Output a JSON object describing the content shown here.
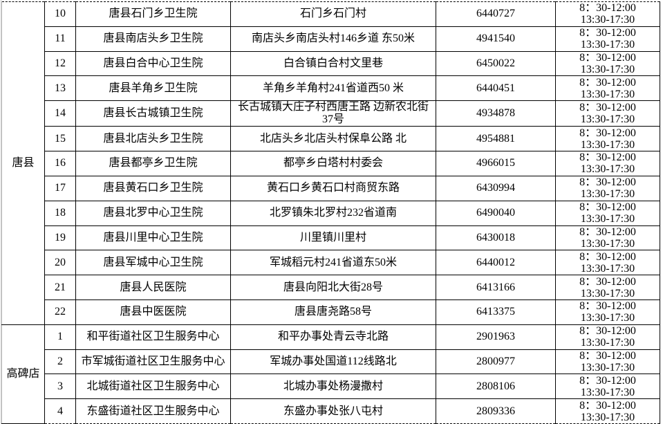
{
  "colors": {
    "background": "#ffffff",
    "border": "#000000",
    "text": "#000000",
    "outer_gridline": "#c9c9c9"
  },
  "table": {
    "columns": [
      "region",
      "row-number",
      "institution-name",
      "address",
      "phone",
      "service-hours"
    ],
    "sections": [
      {
        "region": "唐县",
        "rows": [
          {
            "no": "10",
            "name": "唐县石门乡卫生院",
            "address": "石门乡石门村",
            "phone": "6440727",
            "hours": [
              "8：30-12:00",
              "13:30-17:30"
            ]
          },
          {
            "no": "11",
            "name": "唐县南店头乡卫生院",
            "address": "南店头乡南店头村146乡道 东50米",
            "phone": "4941540",
            "hours": [
              "8：30-12:00",
              "13:30-17:30"
            ]
          },
          {
            "no": "12",
            "name": "唐县白合中心卫生院",
            "address": "白合镇白合村文里巷",
            "phone": "6450022",
            "hours": [
              "8：30-12:00",
              "13:30-17:30"
            ]
          },
          {
            "no": "13",
            "name": "唐县羊角乡卫生院",
            "address": "羊角乡羊角村241省道西50 米",
            "phone": "6440451",
            "hours": [
              "8：30-12:00",
              "13:30-17:30"
            ]
          },
          {
            "no": "14",
            "name": "唐县长古城镇卫生院",
            "address": "长古城镇大庄子村西唐王路 边新农北街37号",
            "phone": "4934878",
            "hours": [
              "8：30-12:00",
              "13:30-17:30"
            ]
          },
          {
            "no": "15",
            "name": "唐县北店头乡卫生院",
            "address": "北店头乡北店头村保阜公路 北",
            "phone": "4954881",
            "hours": [
              "8：30-12:00",
              "13:30-17:30"
            ]
          },
          {
            "no": "16",
            "name": "唐县都亭乡卫生院",
            "address": "都亭乡白塔村村委会",
            "phone": "4966015",
            "hours": [
              "8：30-12:00",
              "13:30-17:30"
            ]
          },
          {
            "no": "17",
            "name": "唐县黄石口乡卫生院",
            "address": "黄石口乡黄石口村商贸东路",
            "phone": "6430994",
            "hours": [
              "8：30-12:00",
              "13:30-17:30"
            ]
          },
          {
            "no": "18",
            "name": "唐县北罗中心卫生院",
            "address": "北罗镇朱北罗村232省道南",
            "phone": "6490040",
            "hours": [
              "8：30-12:00",
              "13:30-17:30"
            ]
          },
          {
            "no": "19",
            "name": "唐县川里中心卫生院",
            "address": "川里镇川里村",
            "phone": "6430018",
            "hours": [
              "8：30-12:00",
              "13:30-17:30"
            ]
          },
          {
            "no": "20",
            "name": "唐县军城中心卫生院",
            "address": "军城稻元村241省道东50米",
            "phone": "6440012",
            "hours": [
              "8：30-12:00",
              "13:30-17:30"
            ]
          },
          {
            "no": "21",
            "name": "唐县人民医院",
            "address": "唐县向阳北大街28号",
            "phone": "6413166",
            "hours": [
              "8：30-12:00",
              "13:30-17:30"
            ]
          },
          {
            "no": "22",
            "name": "唐县中医医院",
            "address": "唐县唐尧路58号",
            "phone": "6413375",
            "hours": [
              "8：30-12:00",
              "13:30-17:30"
            ]
          }
        ]
      },
      {
        "region": "高碑店",
        "rows": [
          {
            "no": "1",
            "name": "和平街道社区卫生服务中心",
            "address": "和平办事处青云寺北路",
            "phone": "2901963",
            "hours": [
              "8：30-12:00",
              "13:30-17:30"
            ]
          },
          {
            "no": "2",
            "name": "市军城街道社区卫生服务中心",
            "address": "军城办事处国道112线路北",
            "phone": "2800977",
            "hours": [
              "8：30-12:00",
              "13:30-17:30"
            ]
          },
          {
            "no": "3",
            "name": "北城街道社区卫生服务中心",
            "address": "北城办事处杨漫撒村",
            "phone": "2808106",
            "hours": [
              "8：30-12:00",
              "13:30-17:30"
            ]
          },
          {
            "no": "4",
            "name": "东盛街道社区卫生服务中心",
            "address": "东盛办事处张八屯村",
            "phone": "2809336",
            "hours": [
              "8：30-12:00",
              "13:30-17:30"
            ]
          }
        ]
      }
    ]
  }
}
